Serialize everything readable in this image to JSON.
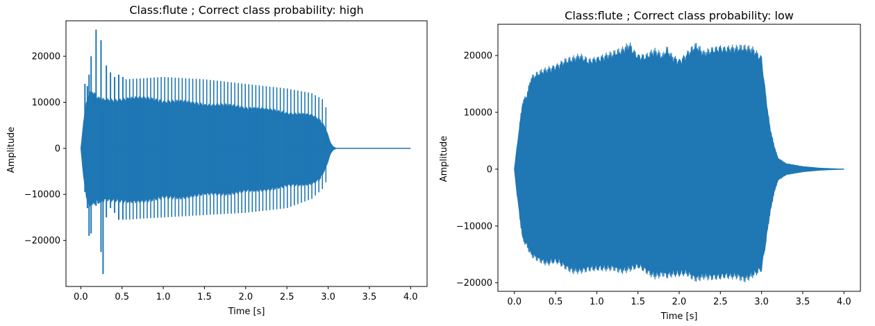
{
  "chart_data": [
    {
      "type": "line",
      "title": "Class:flute ; Correct class probability: high",
      "xlabel": "Time [s]",
      "ylabel": "Amplitude",
      "xlim": [
        -0.18,
        4.2
      ],
      "ylim": [
        -30000,
        27700
      ],
      "xticks": [
        "0.0",
        "0.5",
        "1.0",
        "1.5",
        "2.0",
        "2.5",
        "3.0",
        "3.5",
        "4.0"
      ],
      "yticks": [
        {
          "value": -20000,
          "label": "−20000"
        },
        {
          "value": -10000,
          "label": "−10000"
        },
        {
          "value": 0,
          "label": "0"
        },
        {
          "value": 10000,
          "label": "10000"
        },
        {
          "value": 20000,
          "label": "20000"
        }
      ],
      "series": [
        {
          "color": "#1f77b4",
          "envelope": {
            "t": [
              0.0,
              0.02,
              0.05,
              0.08,
              0.1,
              0.13,
              0.16,
              0.2,
              0.25,
              0.3,
              0.4,
              0.5,
              0.7,
              1.0,
              1.3,
              1.6,
              2.0,
              2.4,
              2.8,
              2.9,
              2.96,
              3.0,
              3.03,
              3.06,
              3.1,
              4.0
            ],
            "upper": [
              0,
              3500,
              9000,
              11500,
              12500,
              13000,
              12500,
              11500,
              11000,
              11000,
              11000,
              11500,
              11500,
              11000,
              10500,
              10000,
              9500,
              8500,
              7500,
              6500,
              5000,
              3000,
              1200,
              400,
              0,
              0
            ],
            "lower": [
              0,
              -4000,
              -9500,
              -12500,
              -13000,
              -13000,
              -12500,
              -12000,
              -12000,
              -11500,
              -12000,
              -12500,
              -12000,
              -11500,
              -11000,
              -10500,
              -10000,
              -9000,
              -8000,
              -7000,
              -5000,
              -3000,
              -1200,
              -400,
              0,
              0
            ]
          },
          "spikes": [
            {
              "t": 0.05,
              "high": 14000,
              "low": -9500
            },
            {
              "t": 0.08,
              "high": 13500,
              "low": -13000
            },
            {
              "t": 0.1,
              "high": 16000,
              "low": -19000
            },
            {
              "t": 0.125,
              "high": 20000,
              "low": -18500
            },
            {
              "t": 0.15,
              "high": 10500,
              "low": -11000
            },
            {
              "t": 0.185,
              "high": 25800,
              "low": -12500
            },
            {
              "t": 0.21,
              "high": 11000,
              "low": -12000
            },
            {
              "t": 0.245,
              "high": 23500,
              "low": -22500
            },
            {
              "t": 0.27,
              "high": 8000,
              "low": -27300
            },
            {
              "t": 0.31,
              "high": 18000,
              "low": -15000
            },
            {
              "t": 0.36,
              "high": 16500,
              "low": -13000
            },
            {
              "t": 0.41,
              "high": 15500,
              "low": -14000
            },
            {
              "t": 0.46,
              "high": 16000,
              "low": -15500
            },
            {
              "t": 0.51,
              "high": 15500,
              "low": -15500
            }
          ],
          "spike_rows": {
            "t": [
              0.55,
              1.0,
              1.5,
              2.0,
              2.5,
              2.8,
              2.95,
              3.0
            ],
            "high": [
              15000,
              15500,
              15000,
              14000,
              13000,
              12000,
              10500,
              7000
            ],
            "low": [
              -15500,
              -15000,
              -14500,
              -14000,
              -13000,
              -11000,
              -8500,
              -6000
            ]
          }
        }
      ]
    },
    {
      "type": "line",
      "title": "Class:flute ; Correct class probability: low",
      "xlabel": "Time [s]",
      "ylabel": "Amplitude",
      "xlim": [
        -0.2,
        4.2
      ],
      "ylim": [
        -21500,
        25500
      ],
      "xticks": [
        "0.0",
        "0.5",
        "1.0",
        "1.5",
        "2.0",
        "2.5",
        "3.0",
        "3.5",
        "4.0"
      ],
      "yticks": [
        {
          "value": -20000,
          "label": "−20000"
        },
        {
          "value": -10000,
          "label": "−10000"
        },
        {
          "value": 0,
          "label": "0"
        },
        {
          "value": 10000,
          "label": "10000"
        },
        {
          "value": 20000,
          "label": "20000"
        }
      ],
      "series": [
        {
          "color": "#1f77b4",
          "envelope": {
            "t": [
              0.0,
              0.03,
              0.07,
              0.1,
              0.15,
              0.2,
              0.3,
              0.4,
              0.5,
              0.6,
              0.7,
              0.8,
              0.9,
              1.0,
              1.1,
              1.2,
              1.3,
              1.4,
              1.45,
              1.5,
              1.6,
              1.7,
              1.8,
              1.85,
              1.9,
              2.0,
              2.1,
              2.2,
              2.3,
              2.4,
              2.5,
              2.6,
              2.7,
              2.8,
              2.9,
              3.0,
              3.05,
              3.1,
              3.15,
              3.2,
              3.3,
              3.5,
              3.7,
              4.0
            ],
            "upper": [
              0,
              4000,
              9000,
              12500,
              13500,
              16500,
              17500,
              18500,
              19500,
              20000,
              20000,
              20500,
              20000,
              21000,
              21000,
              21000,
              21500,
              23000,
              22000,
              21500,
              21000,
              21500,
              20500,
              22000,
              21000,
              20500,
              21500,
              22500,
              21000,
              22000,
              23000,
              22500,
              22000,
              22000,
              22000,
              21000,
              14000,
              8000,
              4500,
              2000,
              1000,
              500,
              200,
              0
            ],
            "lower": [
              0,
              -4500,
              -9500,
              -13000,
              -14000,
              -15500,
              -16500,
              -17500,
              -17500,
              -18000,
              -18500,
              -18500,
              -18500,
              -19000,
              -18500,
              -18000,
              -18500,
              -18500,
              -18500,
              -18500,
              -19000,
              -19500,
              -19000,
              -19500,
              -19500,
              -20000,
              -19500,
              -20000,
              -19500,
              -20000,
              -20500,
              -20000,
              -19500,
              -20000,
              -19500,
              -19000,
              -14000,
              -8500,
              -4500,
              -2000,
              -1000,
              -500,
              -200,
              0
            ]
          }
        }
      ]
    }
  ]
}
